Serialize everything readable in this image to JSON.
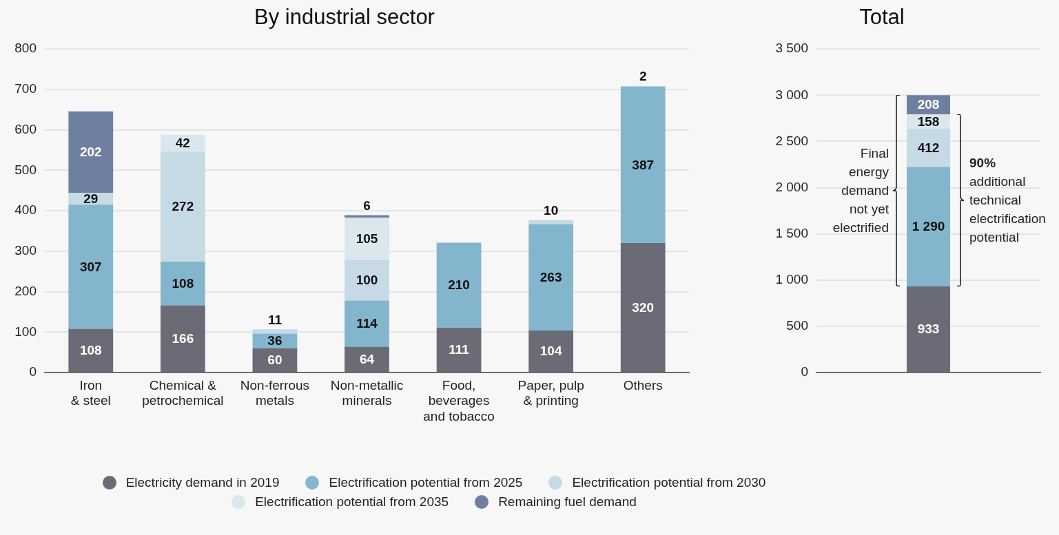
{
  "chart_data": [
    {
      "type": "bar",
      "title": "By industrial sector",
      "stacked": true,
      "grid": "y",
      "legend": "bottom",
      "data_labels": true,
      "categories": [
        "Iron\n& steel",
        "Chemical &\npetrochemical",
        "Non-ferrous\nmetals",
        "Non-metallic\nminerals",
        "Food,\nbeverages\nand tobacco",
        "Paper, pulp\n& printing",
        "Others"
      ],
      "ylim": [
        0,
        800
      ],
      "yticks": [
        0,
        100,
        200,
        300,
        400,
        500,
        600,
        700,
        800
      ],
      "series": [
        {
          "name": "Electricity demand in 2019",
          "color": "#6b6b78",
          "values": [
            108,
            166,
            60,
            64,
            111,
            104,
            320
          ]
        },
        {
          "name": "Electrification potential from 2025",
          "color": "#83b6cd",
          "values": [
            307,
            108,
            36,
            114,
            210,
            263,
            387
          ]
        },
        {
          "name": "Electrification potential from 2030",
          "color": "#c5dae5",
          "values": [
            29,
            272,
            11,
            100,
            null,
            10,
            2
          ]
        },
        {
          "name": "Electrification potential from 2035",
          "color": "#dbe7ef",
          "values": [
            null,
            42,
            null,
            105,
            null,
            null,
            null
          ]
        },
        {
          "name": "Remaining fuel demand",
          "color": "#6f7fa0",
          "values": [
            202,
            null,
            null,
            6,
            null,
            null,
            null
          ]
        }
      ]
    },
    {
      "type": "bar",
      "title": "Total",
      "stacked": true,
      "grid": "y",
      "categories": [
        null
      ],
      "ylim": [
        0,
        3500
      ],
      "yticks": [
        0,
        500,
        {
          "value": 1000,
          "label": "1 000"
        },
        {
          "value": 1500,
          "label": "1 500"
        },
        {
          "value": 2000,
          "label": "2 000"
        },
        {
          "value": 2500,
          "label": "2 500"
        },
        {
          "value": 3000,
          "label": "3 000"
        },
        {
          "value": 3500,
          "label": "3 500"
        }
      ],
      "annotations": [
        "Final\nenergy\ndemand\nnot yet\nelectrified",
        "90%\nadditional\ntechnical\nelectrification\npotential"
      ],
      "series": [
        {
          "color": "#6b6b78",
          "values": [
            933
          ],
          "value_labels": [
            "933"
          ]
        },
        {
          "color": "#83b6cd",
          "values": [
            1290
          ],
          "value_labels": [
            "1 290"
          ]
        },
        {
          "color": "#c5dae5",
          "values": [
            412
          ],
          "value_labels": [
            "412"
          ]
        },
        {
          "color": "#dbe7ef",
          "values": [
            158
          ],
          "value_labels": [
            "158"
          ]
        },
        {
          "color": "#6f7fa0",
          "values": [
            208
          ],
          "value_labels": [
            "208"
          ]
        }
      ]
    }
  ]
}
